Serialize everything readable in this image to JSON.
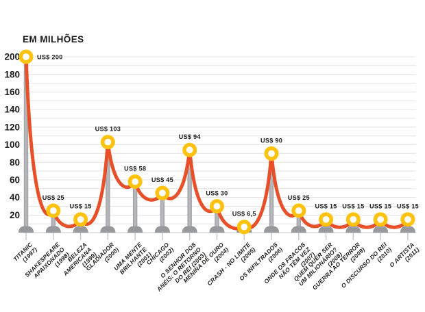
{
  "title": "EM MILHÕES",
  "colors": {
    "line": "#E8502A",
    "marker_ring": "#FFC20E",
    "marker_center": "#FFFFFF",
    "pillar": "#ACAEB1",
    "pillar_base": "#97999C",
    "grid": "#E4E5E6",
    "axis": "#D2D3D4",
    "tick": "#C9CACC",
    "text": "#1D1D1B"
  },
  "chart_data": {
    "type": "line",
    "title": "EM MILHÕES",
    "currency": "US$",
    "ylim": [
      0,
      200
    ],
    "y_ticks": [
      20,
      40,
      60,
      80,
      100,
      120,
      140,
      160,
      180,
      200
    ],
    "grid_interval": 10,
    "grid": "on",
    "legend": "none",
    "points": [
      {
        "film": "TITANIC",
        "year": "1997",
        "label_lines": [
          "TITANIC",
          "(1997)"
        ],
        "value": 200,
        "value_label": "US$ 200"
      },
      {
        "film": "SHAKESPEARE APAIXONADO",
        "year": "1998",
        "label_lines": [
          "SHAKESPEARE",
          "APAIXONADO",
          "(1998)"
        ],
        "value": 25,
        "value_label": "US$ 25"
      },
      {
        "film": "BELEZA AMERICANA",
        "year": "1999",
        "label_lines": [
          "BELEZA",
          "AMERICANA",
          "(1999)"
        ],
        "value": 15,
        "value_label": "US$ 15"
      },
      {
        "film": "GLADIADOR",
        "year": "2000",
        "label_lines": [
          "GLADIADOR",
          "(2000)"
        ],
        "value": 103,
        "value_label": "US$ 103"
      },
      {
        "film": "UMA MENTE BRILHANTE",
        "year": "2001",
        "label_lines": [
          "UMA MENTE",
          "BRILHANTE",
          "(2001)"
        ],
        "value": 58,
        "value_label": "US$ 58"
      },
      {
        "film": "CHICAGO",
        "year": "2002",
        "label_lines": [
          "CHICAGO",
          "(2002)"
        ],
        "value": 45,
        "value_label": "US$ 45"
      },
      {
        "film": "O SENHOR DOS ANÉIS: O RETORNO DO REI",
        "year": "2003",
        "label_lines": [
          "O SENHOR DOS",
          "ANÉIS: O RETORNO",
          "DO REI (2003)"
        ],
        "value": 94,
        "value_label": "US$ 94"
      },
      {
        "film": "MENINA DE OURO",
        "year": "2004",
        "label_lines": [
          "MENINA DE OURO",
          "(2004)"
        ],
        "value": 30,
        "value_label": "US$ 30"
      },
      {
        "film": "CRASH - NO LIMITE",
        "year": "2005",
        "label_lines": [
          "CRASH - NO LIMITE",
          "(2005)"
        ],
        "value": 6.5,
        "value_label": "US$ 6,5"
      },
      {
        "film": "OS INFILTRADOS",
        "year": "2006",
        "label_lines": [
          "OS INFILTRADOS",
          "(2006)"
        ],
        "value": 90,
        "value_label": "US$ 90"
      },
      {
        "film": "ONDE OS FRACOS NÃO TÊM VEZ",
        "year": "2007",
        "label_lines": [
          "ONDE OS FRACOS",
          "NÃO TÊM VEZ",
          "(2007)"
        ],
        "value": 25,
        "value_label": "US$ 25"
      },
      {
        "film": "QUEM QUER SER UM MILIONÁRIO?",
        "year": "2008",
        "label_lines": [
          "QUEM QUER SER",
          "UM MILIONÁRIO?",
          "(2008)"
        ],
        "value": 15,
        "value_label": "US$ 15"
      },
      {
        "film": "GUERRA AO TERROR",
        "year": "2009",
        "label_lines": [
          "GUERRA AO TERROR",
          "(2009)"
        ],
        "value": 15,
        "value_label": "US$ 15"
      },
      {
        "film": "O DISCURSO DO REI",
        "year": "2010",
        "label_lines": [
          "O DISCURSO DO REI",
          "(2010)"
        ],
        "value": 15,
        "value_label": "US$ 15"
      },
      {
        "film": "O ARTISTA",
        "year": "2011",
        "label_lines": [
          "O ARTISTA",
          "(2011)"
        ],
        "value": 15,
        "value_label": "US$ 15"
      }
    ]
  }
}
